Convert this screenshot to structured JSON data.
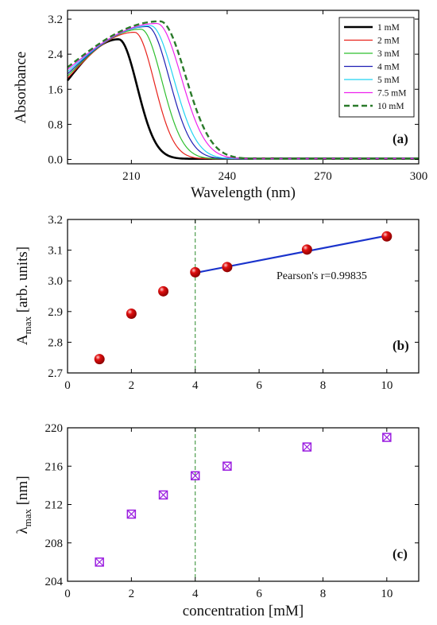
{
  "chart_data": [
    {
      "type": "line",
      "panel_label": "(a)",
      "xlabel": "Wavelength (nm)",
      "ylabel": "Absorbance",
      "xlim": [
        190,
        300
      ],
      "ylim": [
        -0.1,
        3.4
      ],
      "xticks": [
        210,
        240,
        270,
        300
      ],
      "yticks": [
        0.0,
        0.8,
        1.6,
        2.4,
        3.2
      ],
      "ytick_labels": [
        "0.0",
        "0.8",
        "1.6",
        "2.4",
        "3.2"
      ],
      "legend_position": "top-right",
      "series": [
        {
          "name": "1 mM",
          "color": "#000000",
          "width": 2.6,
          "dash": "",
          "peak_x": 206,
          "peak_y": 2.74
        },
        {
          "name": "2 mM",
          "color": "#e8231c",
          "width": 1.2,
          "dash": "",
          "peak_x": 211,
          "peak_y": 2.9
        },
        {
          "name": "3 mM",
          "color": "#2fbf2f",
          "width": 1.2,
          "dash": "",
          "peak_x": 213,
          "peak_y": 2.97
        },
        {
          "name": "4 mM",
          "color": "#1f1fb4",
          "width": 1.2,
          "dash": "",
          "peak_x": 215,
          "peak_y": 3.03
        },
        {
          "name": "5 mM",
          "color": "#22d4f2",
          "width": 1.2,
          "dash": "",
          "peak_x": 216,
          "peak_y": 3.05
        },
        {
          "name": "7.5 mM",
          "color": "#ee22ee",
          "width": 1.2,
          "dash": "",
          "peak_x": 218,
          "peak_y": 3.1
        },
        {
          "name": "10 mM",
          "color": "#2a7a2a",
          "width": 2.4,
          "dash": "7,4",
          "peak_x": 219,
          "peak_y": 3.15
        }
      ]
    },
    {
      "type": "scatter",
      "panel_label": "(b)",
      "xlabel": "",
      "ylabel_main": "A",
      "ylabel_sub": "max",
      "ylabel_rest": " [arb. units]",
      "xlim": [
        0,
        11
      ],
      "ylim": [
        2.7,
        3.2
      ],
      "xticks": [
        0,
        2,
        4,
        6,
        8,
        10
      ],
      "yticks": [
        2.7,
        2.8,
        2.9,
        3.0,
        3.1,
        3.2
      ],
      "ytick_labels": [
        "2.7",
        "2.8",
        "2.9",
        "3.0",
        "3.1",
        "3.2"
      ],
      "x": [
        1,
        2,
        3,
        4,
        5,
        7.5,
        10
      ],
      "y": [
        2.745,
        2.893,
        2.966,
        3.028,
        3.045,
        3.102,
        3.145
      ],
      "marker_color": "#e01010",
      "fit_line": {
        "x": [
          4,
          10
        ],
        "y": [
          3.026,
          3.147
        ],
        "color": "#1a33cc"
      },
      "vline_x": 4,
      "annotation": "Pearson's r=0.99835"
    },
    {
      "type": "scatter",
      "panel_label": "(c)",
      "xlabel": "concentration [mM]",
      "ylabel_main": "λ",
      "ylabel_sub": "max",
      "ylabel_rest": " [nm]",
      "xlim": [
        0,
        11
      ],
      "ylim": [
        204,
        220
      ],
      "xticks": [
        0,
        2,
        4,
        6,
        8,
        10
      ],
      "yticks": [
        204,
        208,
        212,
        216,
        220
      ],
      "ytick_labels": [
        "204",
        "208",
        "212",
        "216",
        "220"
      ],
      "x": [
        1,
        2,
        3,
        4,
        5,
        7.5,
        10
      ],
      "y": [
        206,
        211,
        213,
        215,
        216,
        218,
        219
      ],
      "marker_color": "#9b1fe0",
      "vline_x": 4
    }
  ]
}
